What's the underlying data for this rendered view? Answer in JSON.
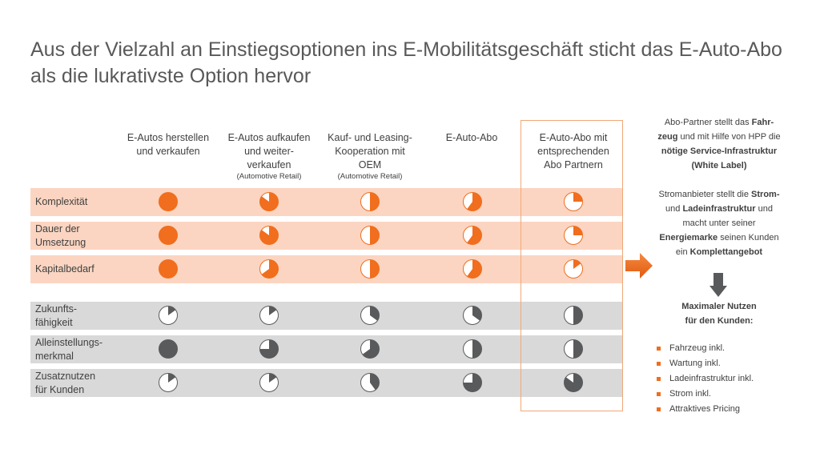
{
  "title_line1": "Aus der Vielzahl an Einstiegsoptionen ins E-Mobilitätsgeschäft sticht das E-Auto-Abo",
  "title_line2": "als die lukrativste Option hervor",
  "columns": [
    {
      "l1": "E-Autos herstellen",
      "l2": "und verkaufen",
      "l3": "",
      "sub": ""
    },
    {
      "l1": "E-Autos aufkaufen",
      "l2": "und weiter-",
      "l3": "verkaufen",
      "sub": "(Automotive  Retail)"
    },
    {
      "l1": "Kauf- und Leasing-",
      "l2": "Kooperation mit",
      "l3": "OEM",
      "sub": "(Automotive  Retail)"
    },
    {
      "l1": "E-Auto-Abo",
      "l2": "",
      "l3": "",
      "sub": ""
    },
    {
      "l1": "E-Auto-Abo mit",
      "l2": "entsprechenden",
      "l3": "Abo Partnern",
      "sub": ""
    }
  ],
  "rows": [
    {
      "l1": "Komplexität",
      "l2": "",
      "group": "orange",
      "fills": [
        1.0,
        0.85,
        0.5,
        0.6,
        0.25
      ]
    },
    {
      "l1": "Dauer der",
      "l2": "Umsetzung",
      "group": "orange",
      "fills": [
        1.0,
        0.85,
        0.5,
        0.6,
        0.25
      ]
    },
    {
      "l1": "Kapitalbedarf",
      "l2": "",
      "group": "orange",
      "fills": [
        1.0,
        0.65,
        0.5,
        0.6,
        0.15
      ]
    },
    {
      "l1": "Zukunfts-",
      "l2": "fähigkeit",
      "group": "gray",
      "fills": [
        0.15,
        0.15,
        0.35,
        0.35,
        0.5
      ]
    },
    {
      "l1": "Alleinstellungs-",
      "l2": "merkmal",
      "group": "gray",
      "fills": [
        1.0,
        0.75,
        0.65,
        0.5,
        0.5
      ]
    },
    {
      "l1": "Zusatznutzen",
      "l2": "für Kunden",
      "group": "gray",
      "fills": [
        0.15,
        0.15,
        0.4,
        0.75,
        0.85
      ]
    }
  ],
  "colors": {
    "orange": "#f06e1e",
    "dark": "#595a5c",
    "outline_orange": "#f06e1e",
    "outline_dark": "#595a5c"
  },
  "side": {
    "p1": {
      "a": "Abo-Partner stellt das ",
      "b": "Fahr-",
      "c": "zeug",
      "d": " und mit Hilfe von HPP die",
      "e": "nötige Service-Infrastruktur",
      "f": "(White Label)"
    },
    "p2": {
      "a": "Stromanbieter stellt die ",
      "b": "Strom-",
      "c": "Ladeinfrastruktur",
      "d": " und",
      "e": "macht unter seiner",
      "f": "Energiemarke",
      "g": " seinen Kunden",
      "h": "ein ",
      "i": "Komplettangebot"
    },
    "benefits_title_l1": "Maximaler Nutzen",
    "benefits_title_l2": "für den Kunden:",
    "benefits": [
      "Fahrzeug inkl.",
      "Wartung inkl.",
      "Ladeinfrastruktur inkl.",
      "Strom inkl.",
      "Attraktives Pricing"
    ]
  }
}
